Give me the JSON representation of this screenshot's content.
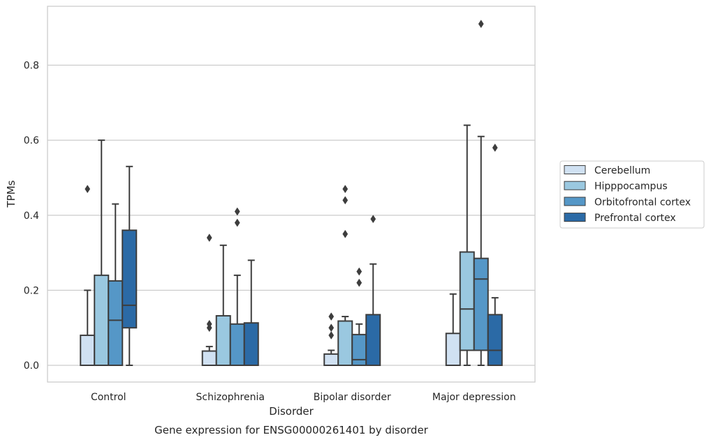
{
  "chart_data": {
    "type": "box",
    "caption": "Gene expression for ENSG00000261401 by disorder",
    "xlabel": "Disorder",
    "ylabel": "TPMs",
    "ylim": [
      -0.045,
      0.96
    ],
    "yticks": [
      0.0,
      0.2,
      0.4,
      0.6,
      0.8
    ],
    "ytick_labels": [
      "0.0",
      "0.2",
      "0.4",
      "0.6",
      "0.8"
    ],
    "categories": [
      "Control",
      "Schizophrenia",
      "Bipolar disorder",
      "Major depression"
    ],
    "grid": "horizontal",
    "legend_position": "right",
    "series": [
      {
        "name": "Cerebellum",
        "color": "#d0e1f2",
        "boxes": [
          {
            "whisker_low": 0.0,
            "q1": 0.0,
            "median": 0.0,
            "q3": 0.08,
            "whisker_high": 0.2,
            "outliers": [
              0.47
            ]
          },
          {
            "whisker_low": 0.0,
            "q1": 0.0,
            "median": 0.0,
            "q3": 0.038,
            "whisker_high": 0.05,
            "outliers": [
              0.1,
              0.11,
              0.34
            ]
          },
          {
            "whisker_low": 0.0,
            "q1": 0.0,
            "median": 0.0,
            "q3": 0.03,
            "whisker_high": 0.04,
            "outliers": [
              0.08,
              0.1,
              0.13
            ]
          },
          {
            "whisker_low": 0.0,
            "q1": 0.0,
            "median": 0.0,
            "q3": 0.085,
            "whisker_high": 0.19,
            "outliers": []
          }
        ]
      },
      {
        "name": "Hipppocampus",
        "color": "#9ac8e0",
        "boxes": [
          {
            "whisker_low": 0.0,
            "q1": 0.0,
            "median": 0.0,
            "q3": 0.24,
            "whisker_high": 0.6,
            "outliers": []
          },
          {
            "whisker_low": 0.0,
            "q1": 0.0,
            "median": 0.0,
            "q3": 0.132,
            "whisker_high": 0.32,
            "outliers": []
          },
          {
            "whisker_low": 0.0,
            "q1": 0.0,
            "median": 0.0,
            "q3": 0.118,
            "whisker_high": 0.13,
            "outliers": [
              0.35,
              0.44,
              0.47
            ]
          },
          {
            "whisker_low": 0.0,
            "q1": 0.04,
            "median": 0.15,
            "q3": 0.302,
            "whisker_high": 0.64,
            "outliers": []
          }
        ]
      },
      {
        "name": "Orbitofrontal cortex",
        "color": "#5597c7",
        "boxes": [
          {
            "whisker_low": 0.0,
            "q1": 0.0,
            "median": 0.12,
            "q3": 0.225,
            "whisker_high": 0.43,
            "outliers": []
          },
          {
            "whisker_low": 0.0,
            "q1": 0.0,
            "median": 0.0,
            "q3": 0.11,
            "whisker_high": 0.24,
            "outliers": [
              0.38,
              0.41
            ]
          },
          {
            "whisker_low": 0.0,
            "q1": 0.0,
            "median": 0.015,
            "q3": 0.082,
            "whisker_high": 0.11,
            "outliers": [
              0.22,
              0.25
            ]
          },
          {
            "whisker_low": 0.0,
            "q1": 0.04,
            "median": 0.23,
            "q3": 0.285,
            "whisker_high": 0.61,
            "outliers": [
              0.91
            ]
          }
        ]
      },
      {
        "name": "Prefrontal cortex",
        "color": "#2b6aa6",
        "boxes": [
          {
            "whisker_low": 0.0,
            "q1": 0.1,
            "median": 0.16,
            "q3": 0.36,
            "whisker_high": 0.53,
            "outliers": []
          },
          {
            "whisker_low": 0.0,
            "q1": 0.0,
            "median": 0.0,
            "q3": 0.113,
            "whisker_high": 0.28,
            "outliers": []
          },
          {
            "whisker_low": 0.0,
            "q1": 0.0,
            "median": 0.0,
            "q3": 0.135,
            "whisker_high": 0.27,
            "outliers": [
              0.39
            ]
          },
          {
            "whisker_low": 0.0,
            "q1": 0.0,
            "median": 0.04,
            "q3": 0.135,
            "whisker_high": 0.18,
            "outliers": [
              0.58
            ]
          }
        ]
      }
    ]
  }
}
